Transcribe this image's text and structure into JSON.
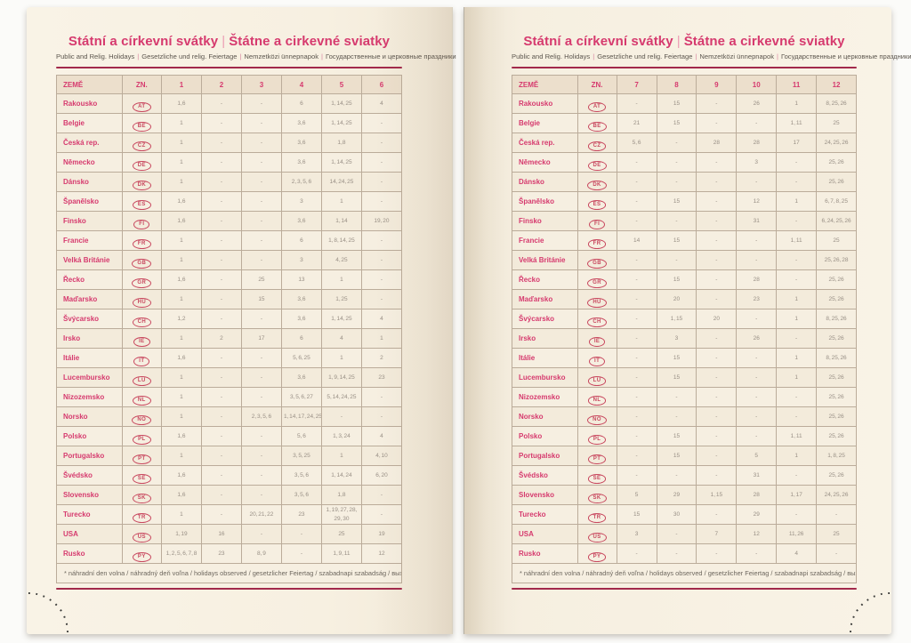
{
  "page_header": {
    "title_cs": "Státní a církevní svátky",
    "title_divider": "|",
    "title_sk": "Štátne a cirkevné sviatky",
    "subtitle_parts": [
      "Public and Relig. Holidays",
      "Gesetzliche und relig. Feiertage",
      "Nemzetközi ünnepnapok",
      "Государственные и церковные праздники"
    ],
    "subtitle_separator": "|"
  },
  "table": {
    "col_country": "ZEMĚ",
    "col_code": "ZN.",
    "months_left": [
      "1",
      "2",
      "3",
      "4",
      "5",
      "6"
    ],
    "months_right": [
      "7",
      "8",
      "9",
      "10",
      "11",
      "12"
    ],
    "footnote": "* náhradní den volna / náhradný deň voľna / holidays observed / gesetzlicher Feiertag / szabadnapi szabadság / выходной день",
    "countries": [
      {
        "name": "Rakousko",
        "code": "AT",
        "left": [
          "1,6",
          "-",
          "-",
          "6",
          "1, 14, 25",
          "4"
        ],
        "right": [
          "-",
          "15",
          "-",
          "26",
          "1",
          "8, 25, 26"
        ]
      },
      {
        "name": "Belgie",
        "code": "BE",
        "left": [
          "1",
          "-",
          "-",
          "3,6",
          "1, 14, 25",
          "-"
        ],
        "right": [
          "21",
          "15",
          "-",
          "-",
          "1, 11",
          "25"
        ]
      },
      {
        "name": "Česká rep.",
        "code": "CZ",
        "left": [
          "1",
          "-",
          "-",
          "3,6",
          "1,8",
          "-"
        ],
        "right": [
          "5, 6",
          "-",
          "28",
          "28",
          "17",
          "24, 25, 26"
        ]
      },
      {
        "name": "Německo",
        "code": "DE",
        "left": [
          "1",
          "-",
          "-",
          "3,6",
          "1, 14, 25",
          "-"
        ],
        "right": [
          "-",
          "-",
          "-",
          "3",
          "-",
          "25, 26"
        ]
      },
      {
        "name": "Dánsko",
        "code": "DK",
        "left": [
          "1",
          "-",
          "-",
          "2, 3, 5, 6",
          "14, 24, 25",
          "-"
        ],
        "right": [
          "-",
          "-",
          "-",
          "-",
          "-",
          "25, 26"
        ]
      },
      {
        "name": "Španělsko",
        "code": "ES",
        "left": [
          "1,6",
          "-",
          "-",
          "3",
          "1",
          "-"
        ],
        "right": [
          "-",
          "15",
          "-",
          "12",
          "1",
          "6, 7, 8, 25"
        ]
      },
      {
        "name": "Finsko",
        "code": "FI",
        "left": [
          "1,6",
          "-",
          "-",
          "3,6",
          "1, 14",
          "19, 20"
        ],
        "right": [
          "-",
          "-",
          "-",
          "31",
          "-",
          "6, 24, 25, 26"
        ]
      },
      {
        "name": "Francie",
        "code": "FR",
        "left": [
          "1",
          "-",
          "-",
          "6",
          "1, 8, 14, 25",
          "-"
        ],
        "right": [
          "14",
          "15",
          "-",
          "-",
          "1, 11",
          "25"
        ]
      },
      {
        "name": "Velká Británie",
        "code": "GB",
        "left": [
          "1",
          "-",
          "-",
          "3",
          "4, 25",
          "-"
        ],
        "right": [
          "-",
          "-",
          "-",
          "-",
          "-",
          "25, 26, 28"
        ]
      },
      {
        "name": "Řecko",
        "code": "GR",
        "left": [
          "1,6",
          "-",
          "25",
          "13",
          "1",
          "-"
        ],
        "right": [
          "-",
          "15",
          "-",
          "28",
          "-",
          "25, 26"
        ]
      },
      {
        "name": "Maďarsko",
        "code": "HU",
        "left": [
          "1",
          "-",
          "15",
          "3,6",
          "1, 25",
          "-"
        ],
        "right": [
          "-",
          "20",
          "-",
          "23",
          "1",
          "25, 26"
        ]
      },
      {
        "name": "Švýcarsko",
        "code": "CH",
        "left": [
          "1,2",
          "-",
          "-",
          "3,6",
          "1, 14, 25",
          "4"
        ],
        "right": [
          "-",
          "1, 15",
          "20",
          "-",
          "1",
          "8, 25, 26"
        ]
      },
      {
        "name": "Irsko",
        "code": "IE",
        "left": [
          "1",
          "2",
          "17",
          "6",
          "4",
          "1"
        ],
        "right": [
          "-",
          "3",
          "-",
          "26",
          "-",
          "25, 26"
        ]
      },
      {
        "name": "Itálie",
        "code": "IT",
        "left": [
          "1,6",
          "-",
          "-",
          "5, 6, 25",
          "1",
          "2"
        ],
        "right": [
          "-",
          "15",
          "-",
          "-",
          "1",
          "8, 25, 26"
        ]
      },
      {
        "name": "Lucembursko",
        "code": "LU",
        "left": [
          "1",
          "-",
          "-",
          "3,6",
          "1, 9, 14, 25",
          "23"
        ],
        "right": [
          "-",
          "15",
          "-",
          "-",
          "1",
          "25, 26"
        ]
      },
      {
        "name": "Nizozemsko",
        "code": "NL",
        "left": [
          "1",
          "-",
          "-",
          "3, 5, 6, 27",
          "5, 14, 24, 25",
          "-"
        ],
        "right": [
          "-",
          "-",
          "-",
          "-",
          "-",
          "25, 26"
        ]
      },
      {
        "name": "Norsko",
        "code": "NO",
        "left": [
          "1",
          "-",
          "2, 3, 5, 6",
          "1, 14, 17, 24, 25",
          "-",
          "-"
        ],
        "right": [
          "-",
          "-",
          "-",
          "-",
          "-",
          "25, 26"
        ]
      },
      {
        "name": "Polsko",
        "code": "PL",
        "left": [
          "1,6",
          "-",
          "-",
          "5, 6",
          "1, 3, 24",
          "4"
        ],
        "right": [
          "-",
          "15",
          "-",
          "-",
          "1, 11",
          "25, 26"
        ]
      },
      {
        "name": "Portugalsko",
        "code": "PT",
        "left": [
          "1",
          "-",
          "-",
          "3, 5, 25",
          "1",
          "4, 10"
        ],
        "right": [
          "-",
          "15",
          "-",
          "5",
          "1",
          "1, 8, 25"
        ]
      },
      {
        "name": "Švédsko",
        "code": "SE",
        "left": [
          "1,6",
          "-",
          "-",
          "3, 5, 6",
          "1, 14, 24",
          "6, 20"
        ],
        "right": [
          "-",
          "-",
          "-",
          "31",
          "-",
          "25, 26"
        ]
      },
      {
        "name": "Slovensko",
        "code": "SK",
        "left": [
          "1,6",
          "-",
          "-",
          "3, 5, 6",
          "1,8",
          "-"
        ],
        "right": [
          "5",
          "29",
          "1, 15",
          "28",
          "1, 17",
          "24, 25, 26"
        ]
      },
      {
        "name": "Turecko",
        "code": "TR",
        "left": [
          "1",
          "-",
          "20, 21, 22",
          "23",
          "1, 19, 27, 28, 29, 30",
          "-"
        ],
        "right": [
          "15",
          "30",
          "-",
          "29",
          "-",
          "-"
        ]
      },
      {
        "name": "USA",
        "code": "US",
        "left": [
          "1, 19",
          "16",
          "-",
          "-",
          "25",
          "19"
        ],
        "right": [
          "3",
          "-",
          "7",
          "12",
          "11, 26",
          "25"
        ]
      },
      {
        "name": "Rusko",
        "code": "PY",
        "left": [
          "1, 2, 5, 6, 7, 8",
          "23",
          "8, 9",
          "-",
          "1, 9, 11",
          "12"
        ],
        "right": [
          "-",
          "-",
          "-",
          "-",
          "4",
          "-"
        ]
      }
    ]
  }
}
